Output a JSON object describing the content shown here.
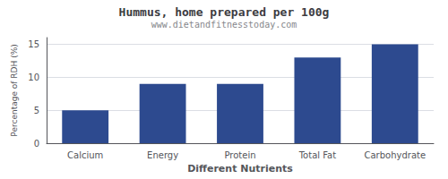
{
  "chart_data": {
    "type": "bar",
    "title": "Hummus, home prepared per 100g",
    "subtitle": "www.dietandfitnesstoday.com",
    "xlabel": "Different Nutrients",
    "ylabel": "Percentage of RDH (%)",
    "categories": [
      "Calcium",
      "Energy",
      "Protein",
      "Total Fat",
      "Carbohydrate"
    ],
    "values": [
      5,
      9,
      9,
      13,
      15
    ],
    "color": "#2d4a8f",
    "ylim": [
      0,
      16
    ],
    "yticks": [
      0,
      5,
      10,
      15
    ],
    "grid": true
  }
}
